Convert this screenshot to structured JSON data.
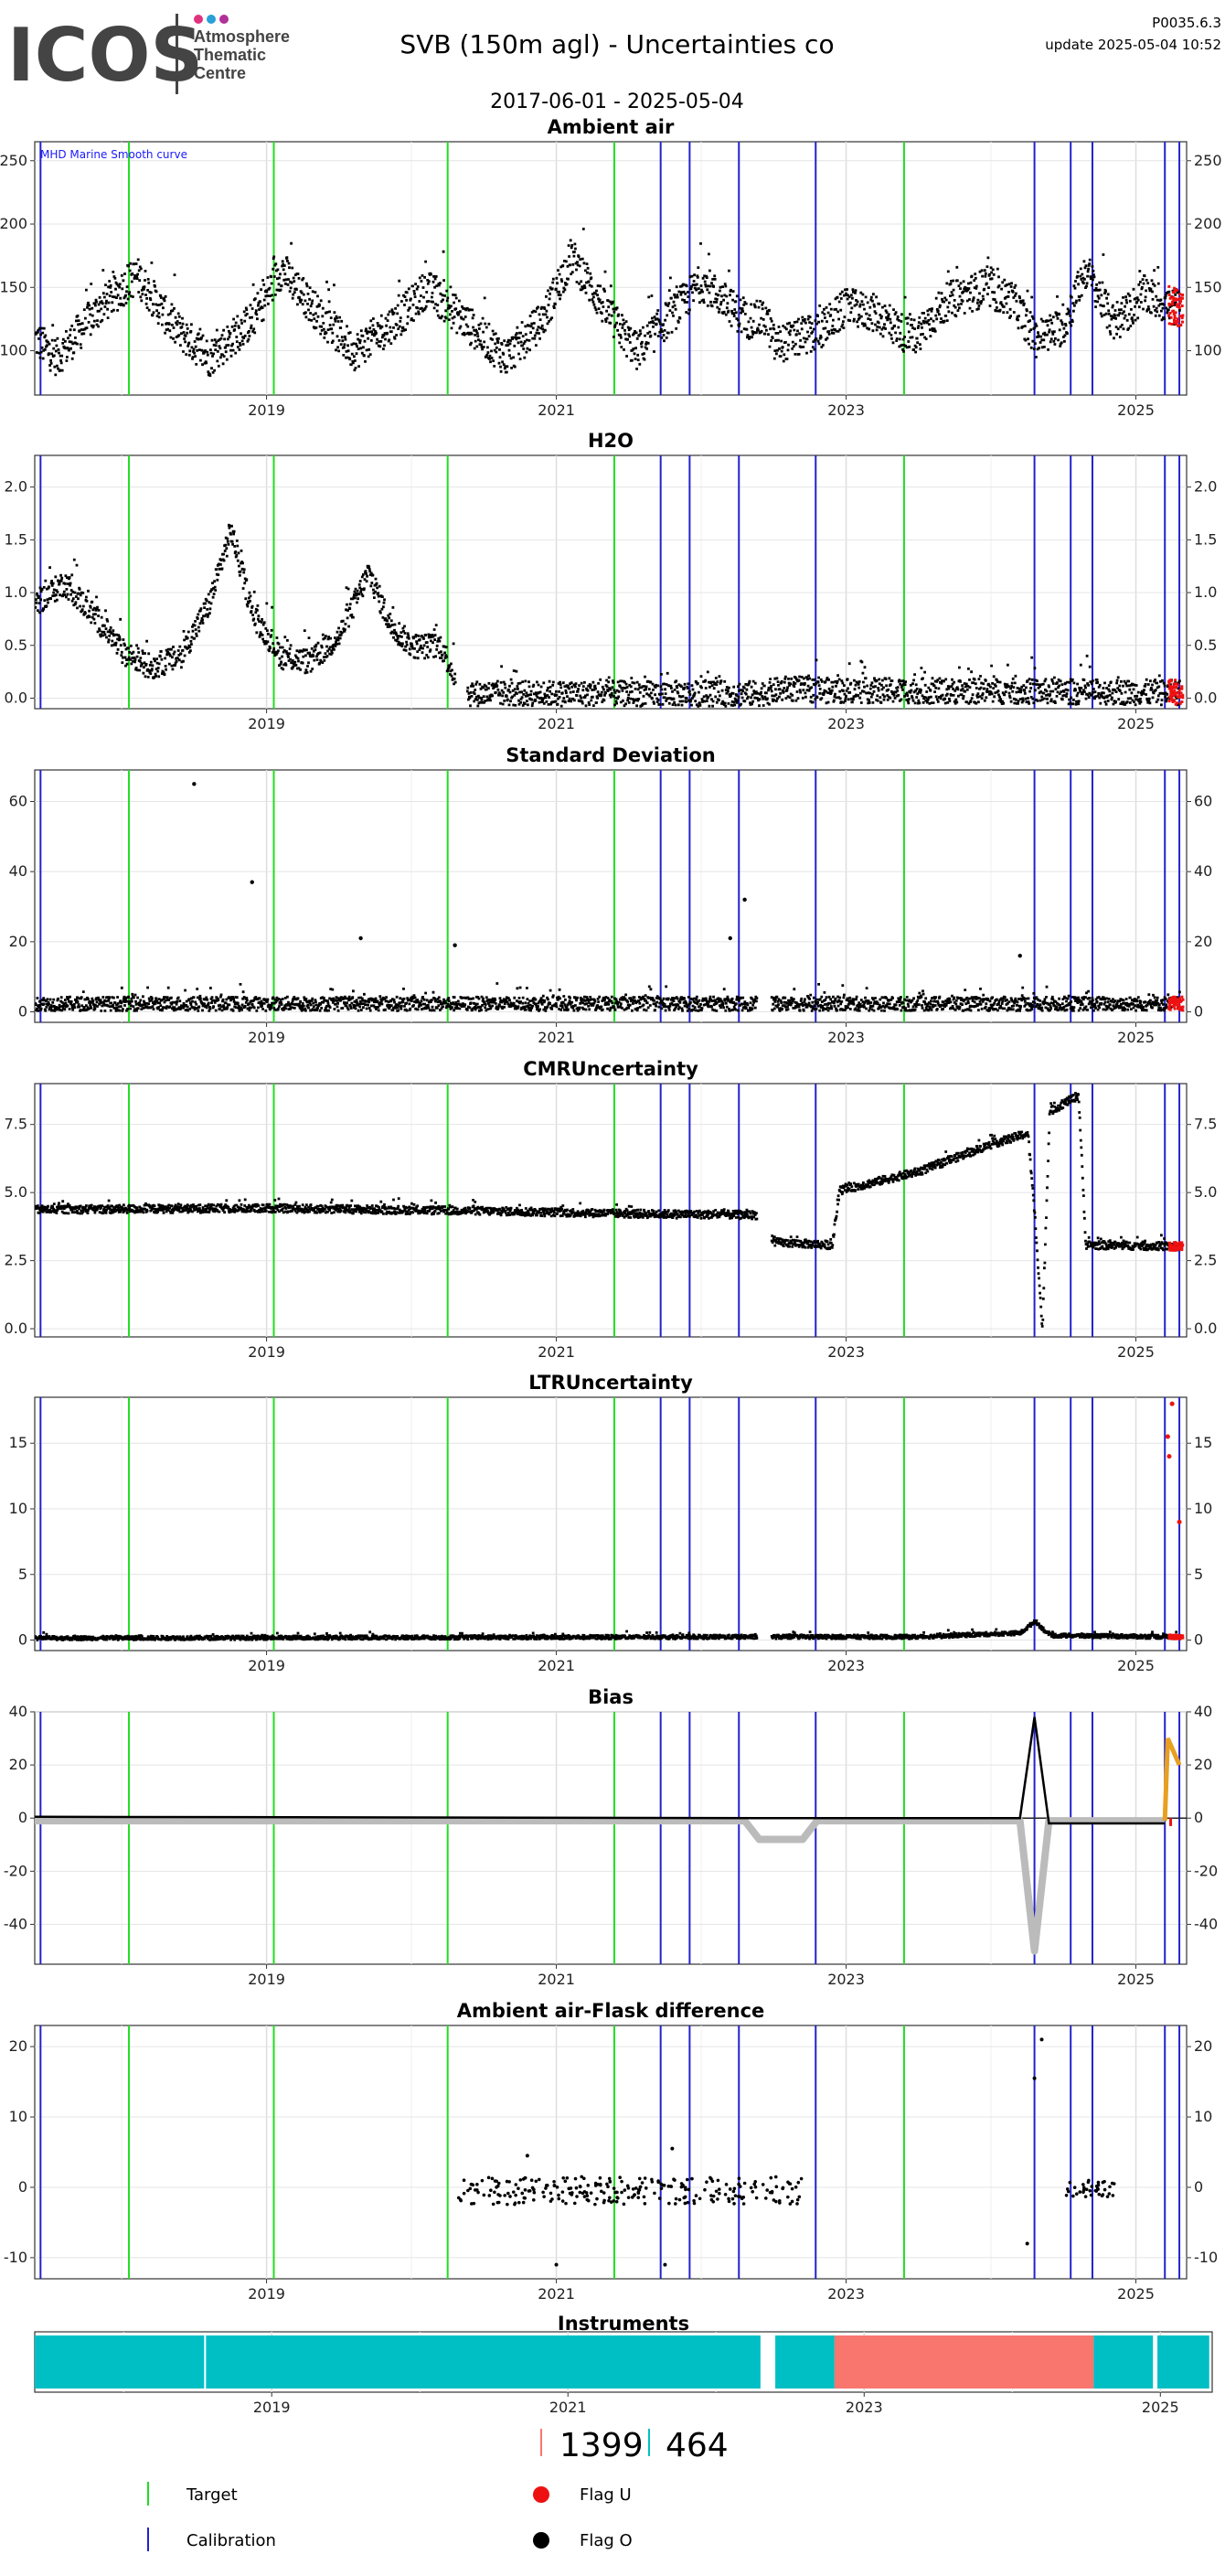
{
  "header": {
    "logo_word": "ICOS",
    "logo_lines": [
      "Atmosphere",
      "Thematic",
      "Centre"
    ],
    "title": "SVB  (150m agl) - Uncertainties co",
    "date_range": "2017-06-01 - 2025-05-04",
    "version": "P0035.6.3",
    "update": "update  2025-05-04 10:52"
  },
  "colors": {
    "target": "#22dd22",
    "calibration": "#2222cc",
    "flag_u": "#ee1111",
    "flag_o": "#000000",
    "bias_gray": "#bbbbbb",
    "bias_orange": "#e8a020",
    "instrument_a": "#00bfc4",
    "instrument_b": "#f8766d"
  },
  "chart_data": [
    {
      "type": "scatter",
      "title": "Ambient air",
      "annotation": "MHD Marine Smooth curve",
      "ylim": [
        65,
        265
      ],
      "yticks": [
        100,
        150,
        200,
        250
      ],
      "ytick_labels": [
        "100",
        "150",
        "200",
        "250"
      ],
      "xticks": [
        "2019",
        "2021",
        "2023",
        "2025"
      ],
      "envelope": [
        [
          2017.4,
          110
        ],
        [
          2017.55,
          95
        ],
        [
          2017.85,
          135
        ],
        [
          2018.1,
          160
        ],
        [
          2018.35,
          120
        ],
        [
          2018.6,
          95
        ],
        [
          2018.9,
          125
        ],
        [
          2019.1,
          165
        ],
        [
          2019.35,
          130
        ],
        [
          2019.6,
          100
        ],
        [
          2019.9,
          125
        ],
        [
          2020.1,
          150
        ],
        [
          2020.4,
          120
        ],
        [
          2020.65,
          95
        ],
        [
          2020.9,
          125
        ],
        [
          2021.1,
          175
        ],
        [
          2021.35,
          130
        ],
        [
          2021.55,
          100
        ],
        [
          2021.8,
          130
        ],
        [
          2022.0,
          155
        ],
        [
          2022.3,
          125
        ],
        [
          2022.45,
          125
        ],
        [
          2022.5,
          105
        ],
        [
          2022.8,
          115
        ],
        [
          2023.0,
          135
        ],
        [
          2023.2,
          130
        ],
        [
          2023.45,
          110
        ],
        [
          2023.7,
          140
        ],
        [
          2023.95,
          150
        ],
        [
          2024.15,
          140
        ],
        [
          2024.3,
          110
        ],
        [
          2024.5,
          120
        ],
        [
          2024.65,
          165
        ],
        [
          2024.85,
          120
        ],
        [
          2025.05,
          145
        ],
        [
          2025.25,
          135
        ]
      ],
      "spread": 15
    },
    {
      "type": "scatter",
      "title": "H2O",
      "ylim": [
        -0.1,
        2.3
      ],
      "yticks": [
        0,
        0.5,
        1,
        1.5,
        2
      ],
      "ytick_labels": [
        "0.0",
        "0.5",
        "1.0",
        "1.5",
        "2.0"
      ],
      "xticks": [
        "2019",
        "2021",
        "2023",
        "2025"
      ],
      "envelope": [
        [
          2017.4,
          0.9
        ],
        [
          2017.6,
          1.1
        ],
        [
          2017.8,
          0.8
        ],
        [
          2018.0,
          0.45
        ],
        [
          2018.2,
          0.3
        ],
        [
          2018.4,
          0.4
        ],
        [
          2018.6,
          0.9
        ],
        [
          2018.75,
          1.6
        ],
        [
          2018.9,
          0.8
        ],
        [
          2019.1,
          0.4
        ],
        [
          2019.3,
          0.35
        ],
        [
          2019.5,
          0.6
        ],
        [
          2019.7,
          1.2
        ],
        [
          2019.85,
          0.7
        ],
        [
          2020.0,
          0.5
        ],
        [
          2020.2,
          0.5
        ],
        [
          2020.35,
          0.05
        ],
        [
          2022.4,
          0.05
        ],
        [
          2022.6,
          0.1
        ],
        [
          2022.8,
          0.08
        ],
        [
          2024.3,
          0.07
        ],
        [
          2025.3,
          0.06
        ]
      ],
      "spread": 0.12
    },
    {
      "type": "scatter",
      "title": "Standard Deviation",
      "ylim": [
        -3,
        69
      ],
      "yticks": [
        0,
        20,
        40,
        60
      ],
      "ytick_labels": [
        "0",
        "20",
        "40",
        "60"
      ],
      "xticks": [
        "2019",
        "2021",
        "2023",
        "2025"
      ],
      "envelope": [
        [
          2017.4,
          2.5
        ],
        [
          2025.3,
          2.5
        ]
      ],
      "spread": 2,
      "outliers": [
        [
          2018.5,
          65
        ],
        [
          2018.9,
          37
        ],
        [
          2019.65,
          21
        ],
        [
          2020.3,
          19
        ],
        [
          2022.3,
          32
        ],
        [
          2022.2,
          21
        ],
        [
          2024.2,
          16
        ]
      ]
    },
    {
      "type": "scatter",
      "title": "CMRUncertainty",
      "ylim": [
        -0.3,
        9.0
      ],
      "yticks": [
        0,
        2.5,
        5,
        7.5
      ],
      "ytick_labels": [
        "0.0",
        "2.5",
        "5.0",
        "7.5"
      ],
      "xticks": [
        "2019",
        "2021",
        "2023",
        "2025"
      ],
      "envelope": [
        [
          2017.4,
          4.4
        ],
        [
          2019.0,
          4.45
        ],
        [
          2020.5,
          4.35
        ],
        [
          2021.5,
          4.25
        ],
        [
          2022.4,
          4.2
        ],
        [
          2022.5,
          3.2
        ],
        [
          2022.9,
          3.1
        ],
        [
          2022.95,
          5.1
        ],
        [
          2023.5,
          5.8
        ],
        [
          2024.0,
          6.8
        ],
        [
          2024.25,
          7.2
        ],
        [
          2024.3,
          4.0
        ],
        [
          2024.35,
          0.0
        ],
        [
          2024.4,
          8.0
        ],
        [
          2024.6,
          8.6
        ],
        [
          2024.65,
          3.1
        ],
        [
          2025.3,
          3.05
        ]
      ],
      "spread": 0.15
    },
    {
      "type": "scatter",
      "title": "LTRUncertainty",
      "ylim": [
        -0.8,
        18.5
      ],
      "yticks": [
        0,
        5,
        10,
        15
      ],
      "ytick_labels": [
        "0",
        "5",
        "10",
        "15"
      ],
      "xticks": [
        "2019",
        "2021",
        "2023",
        "2025"
      ],
      "envelope": [
        [
          2017.4,
          0.2
        ],
        [
          2022.4,
          0.3
        ],
        [
          2023.5,
          0.3
        ],
        [
          2024.2,
          0.6
        ],
        [
          2024.3,
          1.5
        ],
        [
          2024.4,
          0.4
        ],
        [
          2025.3,
          0.3
        ]
      ],
      "spread": 0.15,
      "red_points": [
        [
          2025.22,
          15.5
        ],
        [
          2025.23,
          14.0
        ],
        [
          2025.25,
          18.0
        ],
        [
          2025.3,
          9.0
        ]
      ]
    },
    {
      "type": "line",
      "title": "Bias",
      "ylim": [
        -55,
        40
      ],
      "yticks": [
        -40,
        -20,
        0,
        20,
        40
      ],
      "ytick_labels": [
        "-40",
        "-20",
        "0",
        "20",
        "40"
      ],
      "xticks": [
        "2019",
        "2021",
        "2023",
        "2025"
      ],
      "black": [
        [
          2017.4,
          0.5
        ],
        [
          2022.4,
          0
        ],
        [
          2024.2,
          0
        ],
        [
          2024.3,
          38
        ],
        [
          2024.4,
          -2
        ],
        [
          2025.2,
          -2
        ]
      ],
      "gray": [
        [
          2017.4,
          -1
        ],
        [
          2022.3,
          -1
        ],
        [
          2022.4,
          -8
        ],
        [
          2022.7,
          -8
        ],
        [
          2022.8,
          -1
        ],
        [
          2024.2,
          -1
        ],
        [
          2024.3,
          -50
        ],
        [
          2024.4,
          -1
        ],
        [
          2025.2,
          -1
        ]
      ],
      "orange": [
        [
          2025.2,
          -1
        ],
        [
          2025.22,
          30
        ],
        [
          2025.3,
          20
        ]
      ]
    },
    {
      "type": "scatter",
      "title": "Ambient air-Flask difference",
      "ylim": [
        -13,
        23
      ],
      "yticks": [
        -10,
        0,
        10,
        20
      ],
      "ytick_labels": [
        "-10",
        "0",
        "10",
        "20"
      ],
      "xticks": [
        "2019",
        "2021",
        "2023",
        "2025"
      ],
      "ranges": [
        [
          2020.3,
          2022.7,
          -2.5,
          1.5
        ],
        [
          2024.5,
          2024.85,
          -1.5,
          1.0
        ]
      ],
      "outliers": [
        [
          2020.8,
          4.5
        ],
        [
          2021.0,
          -11
        ],
        [
          2021.8,
          5.5
        ],
        [
          2021.75,
          -11
        ],
        [
          2024.25,
          -8
        ],
        [
          2024.3,
          15.5
        ],
        [
          2024.35,
          21
        ]
      ]
    },
    {
      "type": "bar",
      "title": "Instruments",
      "xticks": [
        "2019",
        "2021",
        "2023",
        "2025"
      ],
      "segments": [
        [
          2017.4,
          2022.3,
          "1"
        ],
        [
          2022.4,
          2022.8,
          "1"
        ],
        [
          2022.8,
          2024.55,
          "2"
        ],
        [
          2024.55,
          2024.95,
          "1"
        ],
        [
          2024.98,
          2025.33,
          "1"
        ]
      ],
      "gaps": [
        2018.55,
        2024.96
      ]
    }
  ],
  "events": {
    "target": [
      2018.05,
      2019.05,
      2020.25,
      2021.4,
      2023.4
    ],
    "calibration": [
      2017.44,
      2021.72,
      2021.92,
      2022.26,
      2022.79,
      2024.3,
      2024.55,
      2024.7,
      2025.2,
      2025.3
    ]
  },
  "counts": [
    "1399",
    "464"
  ],
  "legend": [
    {
      "label": "Target",
      "marker": "vline",
      "color": "#22dd22"
    },
    {
      "label": "Calibration",
      "marker": "vline",
      "color": "#2222cc"
    },
    {
      "label": "Flag U",
      "marker": "dot",
      "color": "#ee1111"
    },
    {
      "label": "Flag O",
      "marker": "dot",
      "color": "#000000"
    }
  ]
}
